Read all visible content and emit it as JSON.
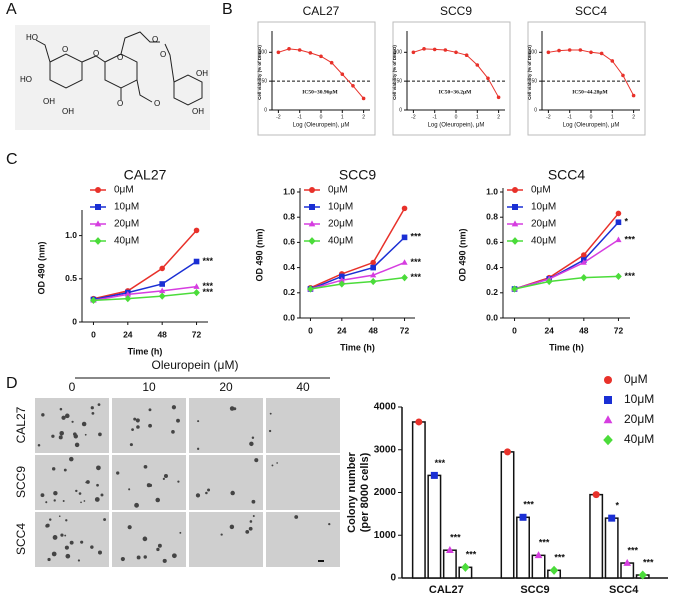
{
  "panel_labels": [
    "A",
    "B",
    "C",
    "D"
  ],
  "structure": {
    "atoms": [
      "HO",
      "O",
      "O",
      "HO",
      "OH",
      "OH",
      "O",
      "O",
      "O",
      "O",
      "O",
      "OH",
      "OH"
    ]
  },
  "colony_images": {
    "title": "Oleuropein (μM)",
    "columns": [
      "0",
      "10",
      "20",
      "40"
    ],
    "rows": [
      "CAL27",
      "SCC9",
      "SCC4"
    ]
  },
  "chart_data": [
    {
      "type": "line",
      "title": "CAL27",
      "x_label": "Log (Oleuropein), μM",
      "y_label": "Cell viability (% of DMSO)",
      "annotation": "IC50=30.96μM",
      "hline": 50,
      "x": [
        -2,
        -1.5,
        -1,
        -0.5,
        0,
        0.5,
        1,
        1.5,
        2
      ],
      "xlim": [
        -2.3,
        2.3
      ],
      "xticks": [
        -2,
        -1,
        0,
        1,
        2
      ],
      "ylim": [
        0,
        130
      ],
      "yticks": [
        0,
        50,
        100
      ],
      "series": [
        {
          "name": "CAL27",
          "color": "#e8312a",
          "marker": "circle",
          "values": [
            100,
            106,
            104,
            99,
            93,
            82,
            62,
            42,
            20
          ]
        }
      ]
    },
    {
      "type": "line",
      "title": "SCC9",
      "x_label": "Log (Oleuropein), μM",
      "y_label": "Cell viability (% of DMSO)",
      "annotation": "IC50=36.2μM",
      "hline": 50,
      "x": [
        -2,
        -1.5,
        -1,
        -0.5,
        0,
        0.5,
        1,
        1.5,
        2
      ],
      "xlim": [
        -2.3,
        2.3
      ],
      "xticks": [
        -2,
        -1,
        0,
        1,
        2
      ],
      "ylim": [
        0,
        130
      ],
      "yticks": [
        0,
        50,
        100
      ],
      "series": [
        {
          "name": "SCC9",
          "color": "#e8312a",
          "marker": "circle",
          "values": [
            100,
            106,
            105,
            104,
            100,
            95,
            78,
            55,
            22
          ]
        }
      ]
    },
    {
      "type": "line",
      "title": "SCC4",
      "x_label": "Log (Oleuropein), μM",
      "y_label": "Cell viability (% of DMSO)",
      "annotation": "IC50=44.28μM",
      "hline": 50,
      "x": [
        -2,
        -1.5,
        -1,
        -0.5,
        0,
        0.5,
        1,
        1.5,
        2
      ],
      "xlim": [
        -2.3,
        2.3
      ],
      "xticks": [
        -2,
        -1,
        0,
        1,
        2
      ],
      "ylim": [
        0,
        130
      ],
      "yticks": [
        0,
        50,
        100
      ],
      "series": [
        {
          "name": "SCC4",
          "color": "#e8312a",
          "marker": "circle",
          "values": [
            100,
            103,
            104,
            104,
            100,
            98,
            85,
            60,
            25
          ]
        }
      ]
    },
    {
      "type": "line",
      "title": "CAL27",
      "x_label": "Time (h)",
      "y_label": "OD 490 (nm)",
      "legend": true,
      "x": [
        0,
        24,
        48,
        72
      ],
      "xlim": [
        -8,
        80
      ],
      "xticks": [
        0,
        24,
        48,
        72
      ],
      "ylim": [
        0,
        1.25
      ],
      "yticks": [
        0,
        0.5,
        {
          "value": 1,
          "label": "1.0"
        }
      ],
      "series": [
        {
          "name": "0μM",
          "color": "#e8312a",
          "marker": "circle",
          "values": [
            0.27,
            0.36,
            0.62,
            1.06
          ]
        },
        {
          "name": "10μM",
          "color": "#1a2fd4",
          "marker": "square",
          "values": [
            0.26,
            0.34,
            0.44,
            0.7
          ],
          "significance": "***"
        },
        {
          "name": "20μM",
          "color": "#d63de0",
          "marker": "triangle",
          "values": [
            0.25,
            0.32,
            0.36,
            0.41
          ],
          "significance": "***"
        },
        {
          "name": "40μM",
          "color": "#4bdc3a",
          "marker": "diamond",
          "values": [
            0.25,
            0.27,
            0.3,
            0.34
          ],
          "significance": "***"
        }
      ]
    },
    {
      "type": "line",
      "title": "SCC9",
      "x_label": "Time (h)",
      "y_label": "OD 490 (nm)",
      "legend": true,
      "x": [
        0,
        24,
        48,
        72
      ],
      "xlim": [
        -8,
        80
      ],
      "xticks": [
        0,
        24,
        48,
        72
      ],
      "ylim": [
        0,
        1
      ],
      "yticks": [
        {
          "value": 0,
          "label": "0.0"
        },
        0.2,
        0.4,
        0.6,
        0.8,
        {
          "value": 1,
          "label": "1.0"
        }
      ],
      "series": [
        {
          "name": "0μM",
          "color": "#e8312a",
          "marker": "circle",
          "values": [
            0.24,
            0.35,
            0.44,
            0.87
          ]
        },
        {
          "name": "10μM",
          "color": "#1a2fd4",
          "marker": "square",
          "values": [
            0.23,
            0.33,
            0.4,
            0.64
          ],
          "significance": "***"
        },
        {
          "name": "20μM",
          "color": "#d63de0",
          "marker": "triangle",
          "values": [
            0.23,
            0.3,
            0.34,
            0.44
          ],
          "significance": "***"
        },
        {
          "name": "40μM",
          "color": "#4bdc3a",
          "marker": "diamond",
          "values": [
            0.23,
            0.27,
            0.29,
            0.32
          ],
          "significance": "***"
        }
      ]
    },
    {
      "type": "line",
      "title": "SCC4",
      "x_label": "Time (h)",
      "y_label": "OD 490 (nm)",
      "legend": true,
      "x": [
        0,
        24,
        48,
        72
      ],
      "xlim": [
        -8,
        80
      ],
      "xticks": [
        0,
        24,
        48,
        72
      ],
      "ylim": [
        0,
        1
      ],
      "yticks": [
        {
          "value": 0,
          "label": "0.0"
        },
        0.2,
        0.4,
        0.6,
        0.8,
        {
          "value": 1,
          "label": "1.0"
        }
      ],
      "series": [
        {
          "name": "0μM",
          "color": "#e8312a",
          "marker": "circle",
          "values": [
            0.23,
            0.32,
            0.5,
            0.83
          ]
        },
        {
          "name": "10μM",
          "color": "#1a2fd4",
          "marker": "square",
          "values": [
            0.23,
            0.31,
            0.46,
            0.76
          ],
          "significance": "*"
        },
        {
          "name": "20μM",
          "color": "#d63de0",
          "marker": "triangle",
          "values": [
            0.23,
            0.31,
            0.44,
            0.62
          ],
          "significance": "***"
        },
        {
          "name": "40μM",
          "color": "#4bdc3a",
          "marker": "diamond",
          "values": [
            0.23,
            0.29,
            0.32,
            0.33
          ],
          "significance": "***"
        }
      ]
    },
    {
      "type": "bar",
      "y_label": [
        "Colony number",
        "(per 8000 cells)"
      ],
      "legend": true,
      "categories": [
        "CAL27",
        "SCC9",
        "SCC4"
      ],
      "ylim": [
        0,
        4000
      ],
      "yticks": [
        0,
        1000,
        2000,
        3000,
        4000
      ],
      "series": [
        {
          "name": "0μM",
          "color": "#e8312a",
          "marker": "circle",
          "values": [
            3650,
            2950,
            1950
          ]
        },
        {
          "name": "10μM",
          "color": "#1a2fd4",
          "marker": "square",
          "values": [
            2400,
            1420,
            1400
          ],
          "significance": [
            "***",
            "***",
            "*"
          ]
        },
        {
          "name": "20μM",
          "color": "#d63de0",
          "marker": "triangle",
          "values": [
            650,
            530,
            350
          ],
          "significance": [
            "***",
            "***",
            "***"
          ]
        },
        {
          "name": "40μM",
          "color": "#4bdc3a",
          "marker": "diamond",
          "values": [
            250,
            180,
            70
          ],
          "significance": [
            "***",
            "***",
            "***"
          ]
        }
      ]
    }
  ]
}
